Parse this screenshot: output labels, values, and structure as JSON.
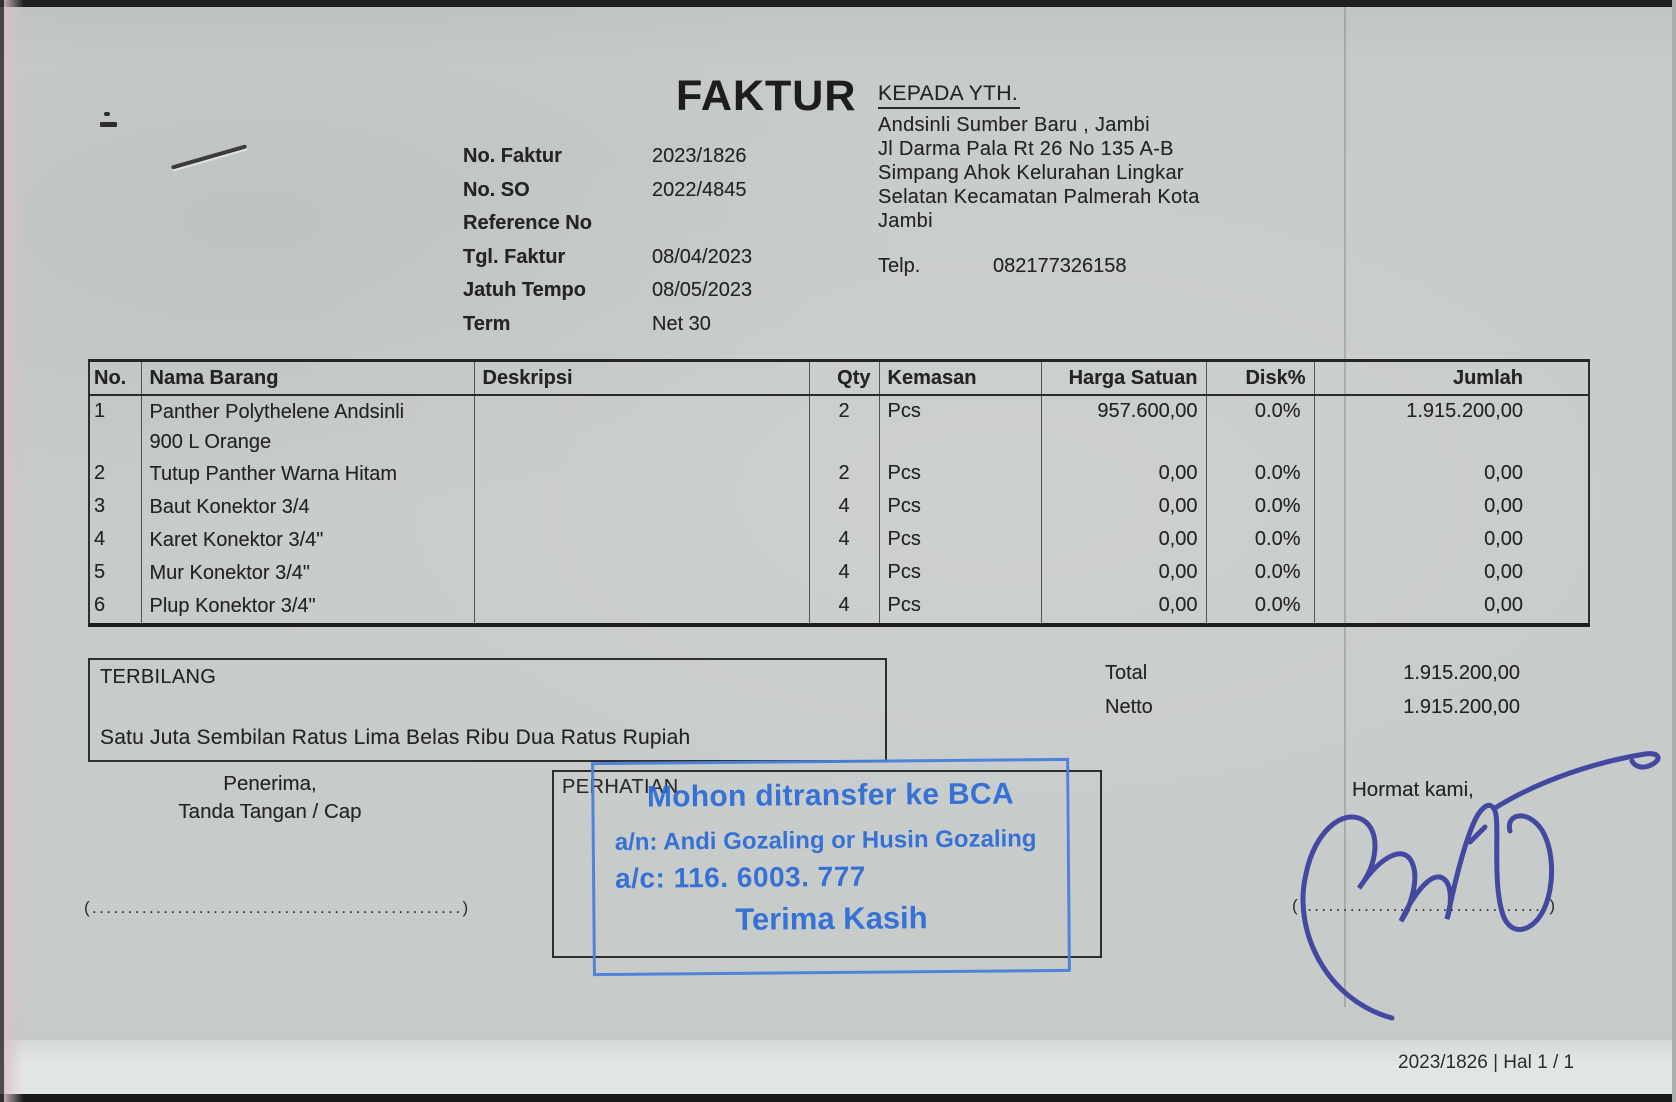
{
  "title": "FAKTUR",
  "recipient": {
    "heading": "KEPADA YTH.",
    "lines": [
      "Andsinli Sumber Baru , Jambi",
      "Jl Darma Pala Rt 26 No 135 A-B",
      "Simpang Ahok Kelurahan Lingkar",
      "Selatan Kecamatan Palmerah Kota",
      "Jambi"
    ],
    "phone_label": "Telp.",
    "phone": "082177326158"
  },
  "meta": {
    "rows": [
      {
        "label": "No. Faktur",
        "value": "2023/1826"
      },
      {
        "label": "No. SO",
        "value": "2022/4845"
      },
      {
        "label": "Reference No",
        "value": ""
      },
      {
        "label": "Tgl. Faktur",
        "value": "08/04/2023"
      },
      {
        "label": "Jatuh Tempo",
        "value": "08/05/2023"
      },
      {
        "label": "Term",
        "value": "Net 30"
      }
    ]
  },
  "table": {
    "headers": [
      "No.",
      "Nama Barang",
      "Deskripsi",
      "Qty",
      "Kemasan",
      "Harga Satuan",
      "Disk%",
      "Jumlah"
    ],
    "columns": [
      {
        "key": "no",
        "align": "left"
      },
      {
        "key": "nama",
        "align": "left"
      },
      {
        "key": "deskripsi",
        "align": "left"
      },
      {
        "key": "qty",
        "align": "center"
      },
      {
        "key": "kemasan",
        "align": "left"
      },
      {
        "key": "harga",
        "align": "right"
      },
      {
        "key": "disk",
        "align": "right"
      },
      {
        "key": "jumlah",
        "align": "right"
      }
    ],
    "rows": [
      {
        "no": "1",
        "nama": "Panther Polythelene Andsinli\n900 L Orange",
        "deskripsi": "",
        "qty": "2",
        "kemasan": "Pcs",
        "harga": "957.600,00",
        "disk": "0.0%",
        "jumlah": "1.915.200,00"
      },
      {
        "no": "2",
        "nama": "Tutup Panther Warna Hitam",
        "deskripsi": "",
        "qty": "2",
        "kemasan": "Pcs",
        "harga": "0,00",
        "disk": "0.0%",
        "jumlah": "0,00"
      },
      {
        "no": "3",
        "nama": "Baut Konektor 3/4",
        "deskripsi": "",
        "qty": "4",
        "kemasan": "Pcs",
        "harga": "0,00",
        "disk": "0.0%",
        "jumlah": "0,00"
      },
      {
        "no": "4",
        "nama": "Karet Konektor 3/4\"",
        "deskripsi": "",
        "qty": "4",
        "kemasan": "Pcs",
        "harga": "0,00",
        "disk": "0.0%",
        "jumlah": "0,00"
      },
      {
        "no": "5",
        "nama": "Mur Konektor 3/4\"",
        "deskripsi": "",
        "qty": "4",
        "kemasan": "Pcs",
        "harga": "0,00",
        "disk": "0.0%",
        "jumlah": "0,00"
      },
      {
        "no": "6",
        "nama": "Plup Konektor 3/4\"",
        "deskripsi": "",
        "qty": "4",
        "kemasan": "Pcs",
        "harga": "0,00",
        "disk": "0.0%",
        "jumlah": "0,00"
      }
    ]
  },
  "terbilang": {
    "label": "TERBILANG",
    "text": "Satu Juta Sembilan Ratus Lima Belas Ribu Dua Ratus Rupiah"
  },
  "totals": {
    "total_label": "Total",
    "total_value": "1.915.200,00",
    "netto_label": "Netto",
    "netto_value": "1.915.200,00"
  },
  "penerima": {
    "line1": "Penerima,",
    "line2": "Tanda Tangan / Cap",
    "dots": "(....................................................)"
  },
  "attention": {
    "label": "PERHATIAN",
    "line1": "Mohon ditransfer ke BCA",
    "line2": "a/n: Andi Gozaling or Husin Gozaling",
    "line3": "a/c: 116. 6003. 777",
    "line4": "Terima Kasih",
    "stamp_color": "#2f6ed6"
  },
  "hormat": {
    "label": "Hormat kami,",
    "dots": "( ................................. )"
  },
  "footer": {
    "text": "2023/1826 | Hal 1 / 1"
  }
}
